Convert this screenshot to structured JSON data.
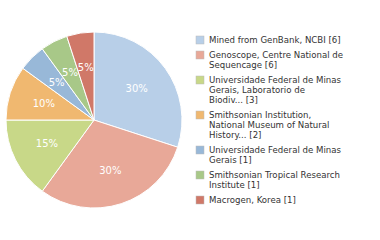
{
  "chart_data": {
    "type": "pie",
    "categories": [
      "Mined from GenBank, NCBI [6]",
      "Genoscope, Centre National de\nSequencage [6]",
      "Universidade Federal de Minas\nGerais, Laboratorio de\nBiodiv... [3]",
      "Smithsonian Institution,\nNational Museum of Natural\nHistory... [2]",
      "Universidade Federal de Minas\nGerais [1]",
      "Smithsonian Tropical Research\nInstitute [1]",
      "Macrogen, Korea [1]"
    ],
    "values": [
      30,
      30,
      15,
      10,
      5,
      5,
      5
    ],
    "value_labels": [
      "30%",
      "30%",
      "15%",
      "10%",
      "5%",
      "5%",
      "5%"
    ],
    "colors": [
      "#b8cfe8",
      "#e8a898",
      "#c8d888",
      "#f0b870",
      "#98b8d8",
      "#a8c888",
      "#d07868"
    ],
    "data_labels": true,
    "legend": "right"
  }
}
